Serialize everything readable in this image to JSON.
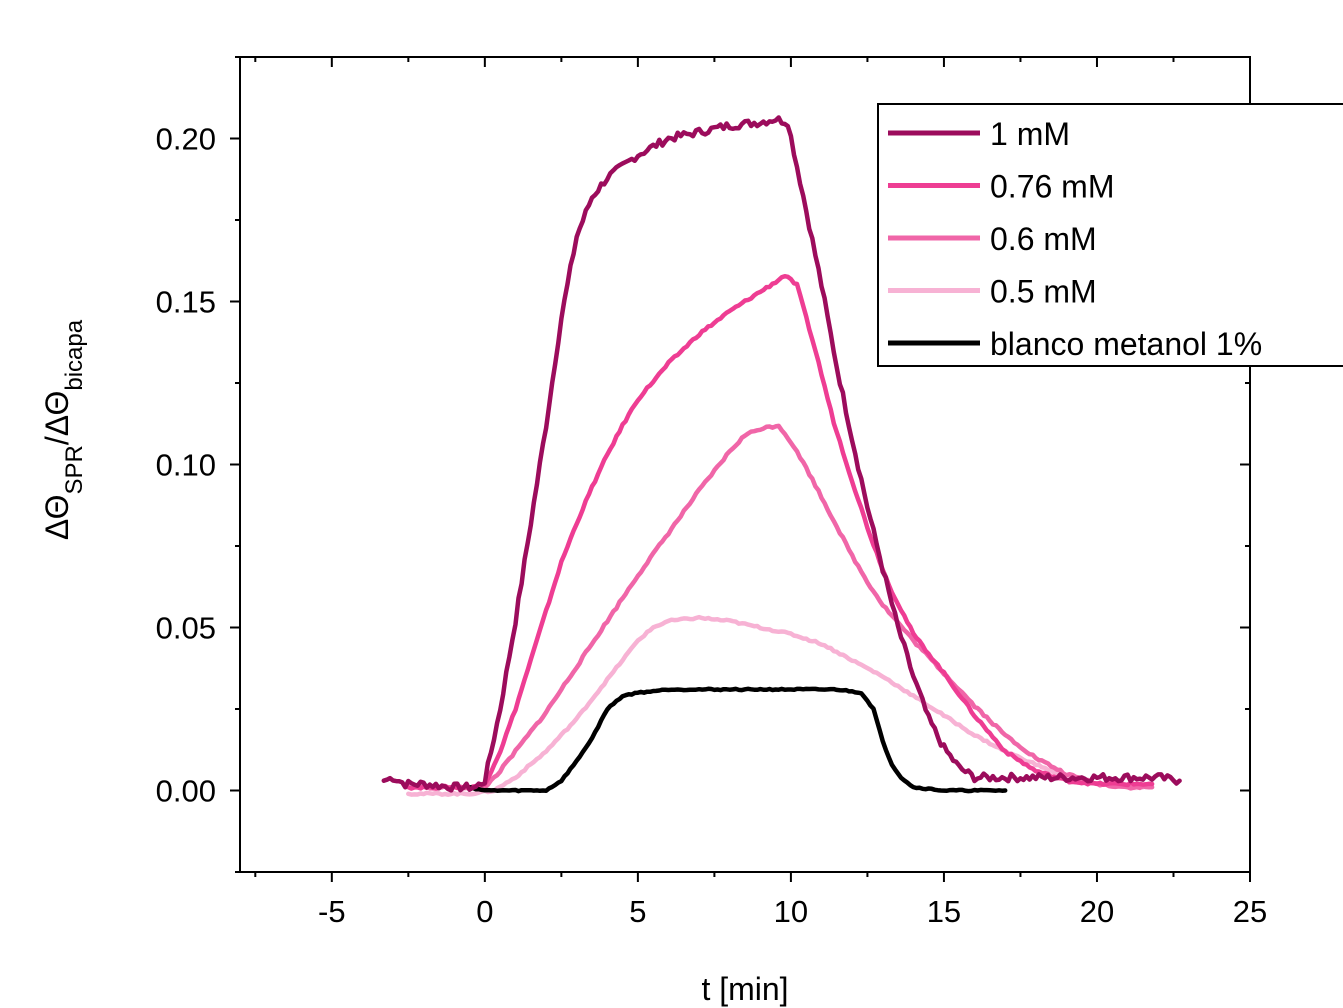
{
  "chart_data": {
    "type": "line",
    "xlabel": "t [min]",
    "ylabel": {
      "prefix1": "ΔΘ",
      "sub1": "SPR",
      "mid": "/ΔΘ",
      "sub2": "bicapa"
    },
    "xlim": [
      -8,
      25
    ],
    "ylim": [
      -0.025,
      0.225
    ],
    "xticks": [
      -5,
      0,
      5,
      10,
      15,
      20,
      25
    ],
    "yticks": [
      0.0,
      0.05,
      0.1,
      0.15,
      0.2
    ],
    "xtick_labels": [
      "-5",
      "0",
      "5",
      "10",
      "15",
      "20",
      "25"
    ],
    "ytick_labels": [
      "0.00",
      "0.05",
      "0.10",
      "0.15",
      "0.20"
    ],
    "legend_position": "top-right",
    "series": [
      {
        "name": "1 mM",
        "color": "#9c0c5c",
        "noise": 0.0012,
        "points": [
          [
            -3.3,
            0.003
          ],
          [
            -3.0,
            0.004
          ],
          [
            -2.6,
            0.002
          ],
          [
            -2.0,
            0.002
          ],
          [
            -1.0,
            0.001
          ],
          [
            -0.3,
            0.001
          ],
          [
            0.0,
            0.003
          ],
          [
            0.5,
            0.025
          ],
          [
            1.0,
            0.052
          ],
          [
            1.5,
            0.082
          ],
          [
            2.0,
            0.112
          ],
          [
            2.5,
            0.145
          ],
          [
            3.0,
            0.17
          ],
          [
            3.5,
            0.182
          ],
          [
            4.0,
            0.188
          ],
          [
            5.0,
            0.195
          ],
          [
            6.0,
            0.2
          ],
          [
            7.0,
            0.202
          ],
          [
            8.0,
            0.204
          ],
          [
            9.0,
            0.205
          ],
          [
            9.5,
            0.206
          ],
          [
            9.9,
            0.205
          ],
          [
            10.5,
            0.178
          ],
          [
            11.0,
            0.155
          ],
          [
            11.5,
            0.13
          ],
          [
            12.0,
            0.108
          ],
          [
            12.5,
            0.087
          ],
          [
            13.0,
            0.068
          ],
          [
            13.5,
            0.05
          ],
          [
            14.0,
            0.035
          ],
          [
            14.5,
            0.022
          ],
          [
            15.0,
            0.013
          ],
          [
            15.5,
            0.007
          ],
          [
            16.0,
            0.004
          ],
          [
            17.0,
            0.004
          ],
          [
            18.0,
            0.004
          ],
          [
            20.0,
            0.004
          ],
          [
            22.0,
            0.004
          ],
          [
            22.7,
            0.003
          ]
        ]
      },
      {
        "name": "0.76 mM",
        "color": "#ee3d93",
        "noise": 0.0004,
        "points": [
          [
            -2.5,
            0.001
          ],
          [
            -1.5,
            0.001
          ],
          [
            -0.5,
            0.001
          ],
          [
            0.0,
            0.002
          ],
          [
            0.5,
            0.012
          ],
          [
            1.0,
            0.025
          ],
          [
            1.5,
            0.04
          ],
          [
            2.0,
            0.055
          ],
          [
            2.5,
            0.07
          ],
          [
            3.0,
            0.082
          ],
          [
            3.5,
            0.093
          ],
          [
            4.0,
            0.103
          ],
          [
            4.5,
            0.112
          ],
          [
            5.0,
            0.12
          ],
          [
            6.0,
            0.131
          ],
          [
            7.0,
            0.14
          ],
          [
            8.0,
            0.147
          ],
          [
            9.0,
            0.153
          ],
          [
            9.5,
            0.156
          ],
          [
            9.8,
            0.158
          ],
          [
            10.2,
            0.155
          ],
          [
            10.8,
            0.135
          ],
          [
            11.4,
            0.113
          ],
          [
            12.0,
            0.095
          ],
          [
            12.6,
            0.078
          ],
          [
            13.2,
            0.063
          ],
          [
            14.0,
            0.048
          ],
          [
            15.0,
            0.036
          ],
          [
            16.0,
            0.023
          ],
          [
            17.0,
            0.012
          ],
          [
            18.0,
            0.006
          ],
          [
            19.0,
            0.003
          ],
          [
            20.0,
            0.002
          ],
          [
            21.0,
            0.002
          ],
          [
            21.8,
            0.002
          ]
        ]
      },
      {
        "name": "0.6 mM",
        "color": "#f066a8",
        "noise": 0.0004,
        "points": [
          [
            -2.3,
            0.001
          ],
          [
            -1.0,
            0.001
          ],
          [
            0.0,
            0.001
          ],
          [
            0.5,
            0.006
          ],
          [
            1.0,
            0.012
          ],
          [
            2.0,
            0.024
          ],
          [
            3.0,
            0.038
          ],
          [
            4.0,
            0.052
          ],
          [
            5.0,
            0.066
          ],
          [
            6.0,
            0.079
          ],
          [
            7.0,
            0.092
          ],
          [
            8.0,
            0.104
          ],
          [
            8.5,
            0.109
          ],
          [
            9.0,
            0.111
          ],
          [
            9.6,
            0.112
          ],
          [
            10.0,
            0.107
          ],
          [
            10.5,
            0.099
          ],
          [
            11.0,
            0.09
          ],
          [
            11.5,
            0.081
          ],
          [
            12.0,
            0.072
          ],
          [
            12.5,
            0.064
          ],
          [
            13.0,
            0.057
          ],
          [
            14.0,
            0.046
          ],
          [
            15.0,
            0.036
          ],
          [
            16.0,
            0.026
          ],
          [
            17.0,
            0.017
          ],
          [
            18.0,
            0.01
          ],
          [
            19.0,
            0.005
          ],
          [
            20.0,
            0.002
          ],
          [
            21.0,
            0.001
          ],
          [
            21.8,
            0.001
          ]
        ]
      },
      {
        "name": "0.5 mM",
        "color": "#f7b2d4",
        "noise": 0.0003,
        "points": [
          [
            -2.5,
            -0.001
          ],
          [
            -1.5,
            -0.001
          ],
          [
            -0.5,
            -0.001
          ],
          [
            0.3,
            0.0
          ],
          [
            1.0,
            0.004
          ],
          [
            2.0,
            0.012
          ],
          [
            3.0,
            0.022
          ],
          [
            4.0,
            0.034
          ],
          [
            5.0,
            0.046
          ],
          [
            5.5,
            0.05
          ],
          [
            6.0,
            0.052
          ],
          [
            7.0,
            0.053
          ],
          [
            8.0,
            0.052
          ],
          [
            9.0,
            0.05
          ],
          [
            10.0,
            0.048
          ],
          [
            11.0,
            0.045
          ],
          [
            12.0,
            0.04
          ],
          [
            13.0,
            0.035
          ],
          [
            14.0,
            0.029
          ],
          [
            15.0,
            0.023
          ],
          [
            16.0,
            0.017
          ],
          [
            17.0,
            0.012
          ],
          [
            18.0,
            0.008
          ],
          [
            19.0,
            0.004
          ],
          [
            20.0,
            0.002
          ],
          [
            21.0,
            0.001
          ],
          [
            21.5,
            0.001
          ]
        ]
      },
      {
        "name": "blanco metanol 1%",
        "color": "#000000",
        "noise": 0.0002,
        "points": [
          [
            -0.5,
            0.001
          ],
          [
            0.0,
            0.0
          ],
          [
            1.0,
            0.0
          ],
          [
            2.0,
            0.0
          ],
          [
            2.5,
            0.003
          ],
          [
            3.0,
            0.009
          ],
          [
            3.5,
            0.016
          ],
          [
            4.0,
            0.025
          ],
          [
            4.5,
            0.029
          ],
          [
            5.0,
            0.03
          ],
          [
            6.0,
            0.031
          ],
          [
            8.0,
            0.031
          ],
          [
            10.0,
            0.031
          ],
          [
            11.5,
            0.031
          ],
          [
            12.3,
            0.03
          ],
          [
            12.7,
            0.025
          ],
          [
            13.0,
            0.015
          ],
          [
            13.3,
            0.008
          ],
          [
            13.6,
            0.004
          ],
          [
            14.0,
            0.001
          ],
          [
            15.0,
            0.0
          ],
          [
            16.0,
            0.0
          ],
          [
            17.0,
            0.0
          ]
        ]
      }
    ]
  }
}
